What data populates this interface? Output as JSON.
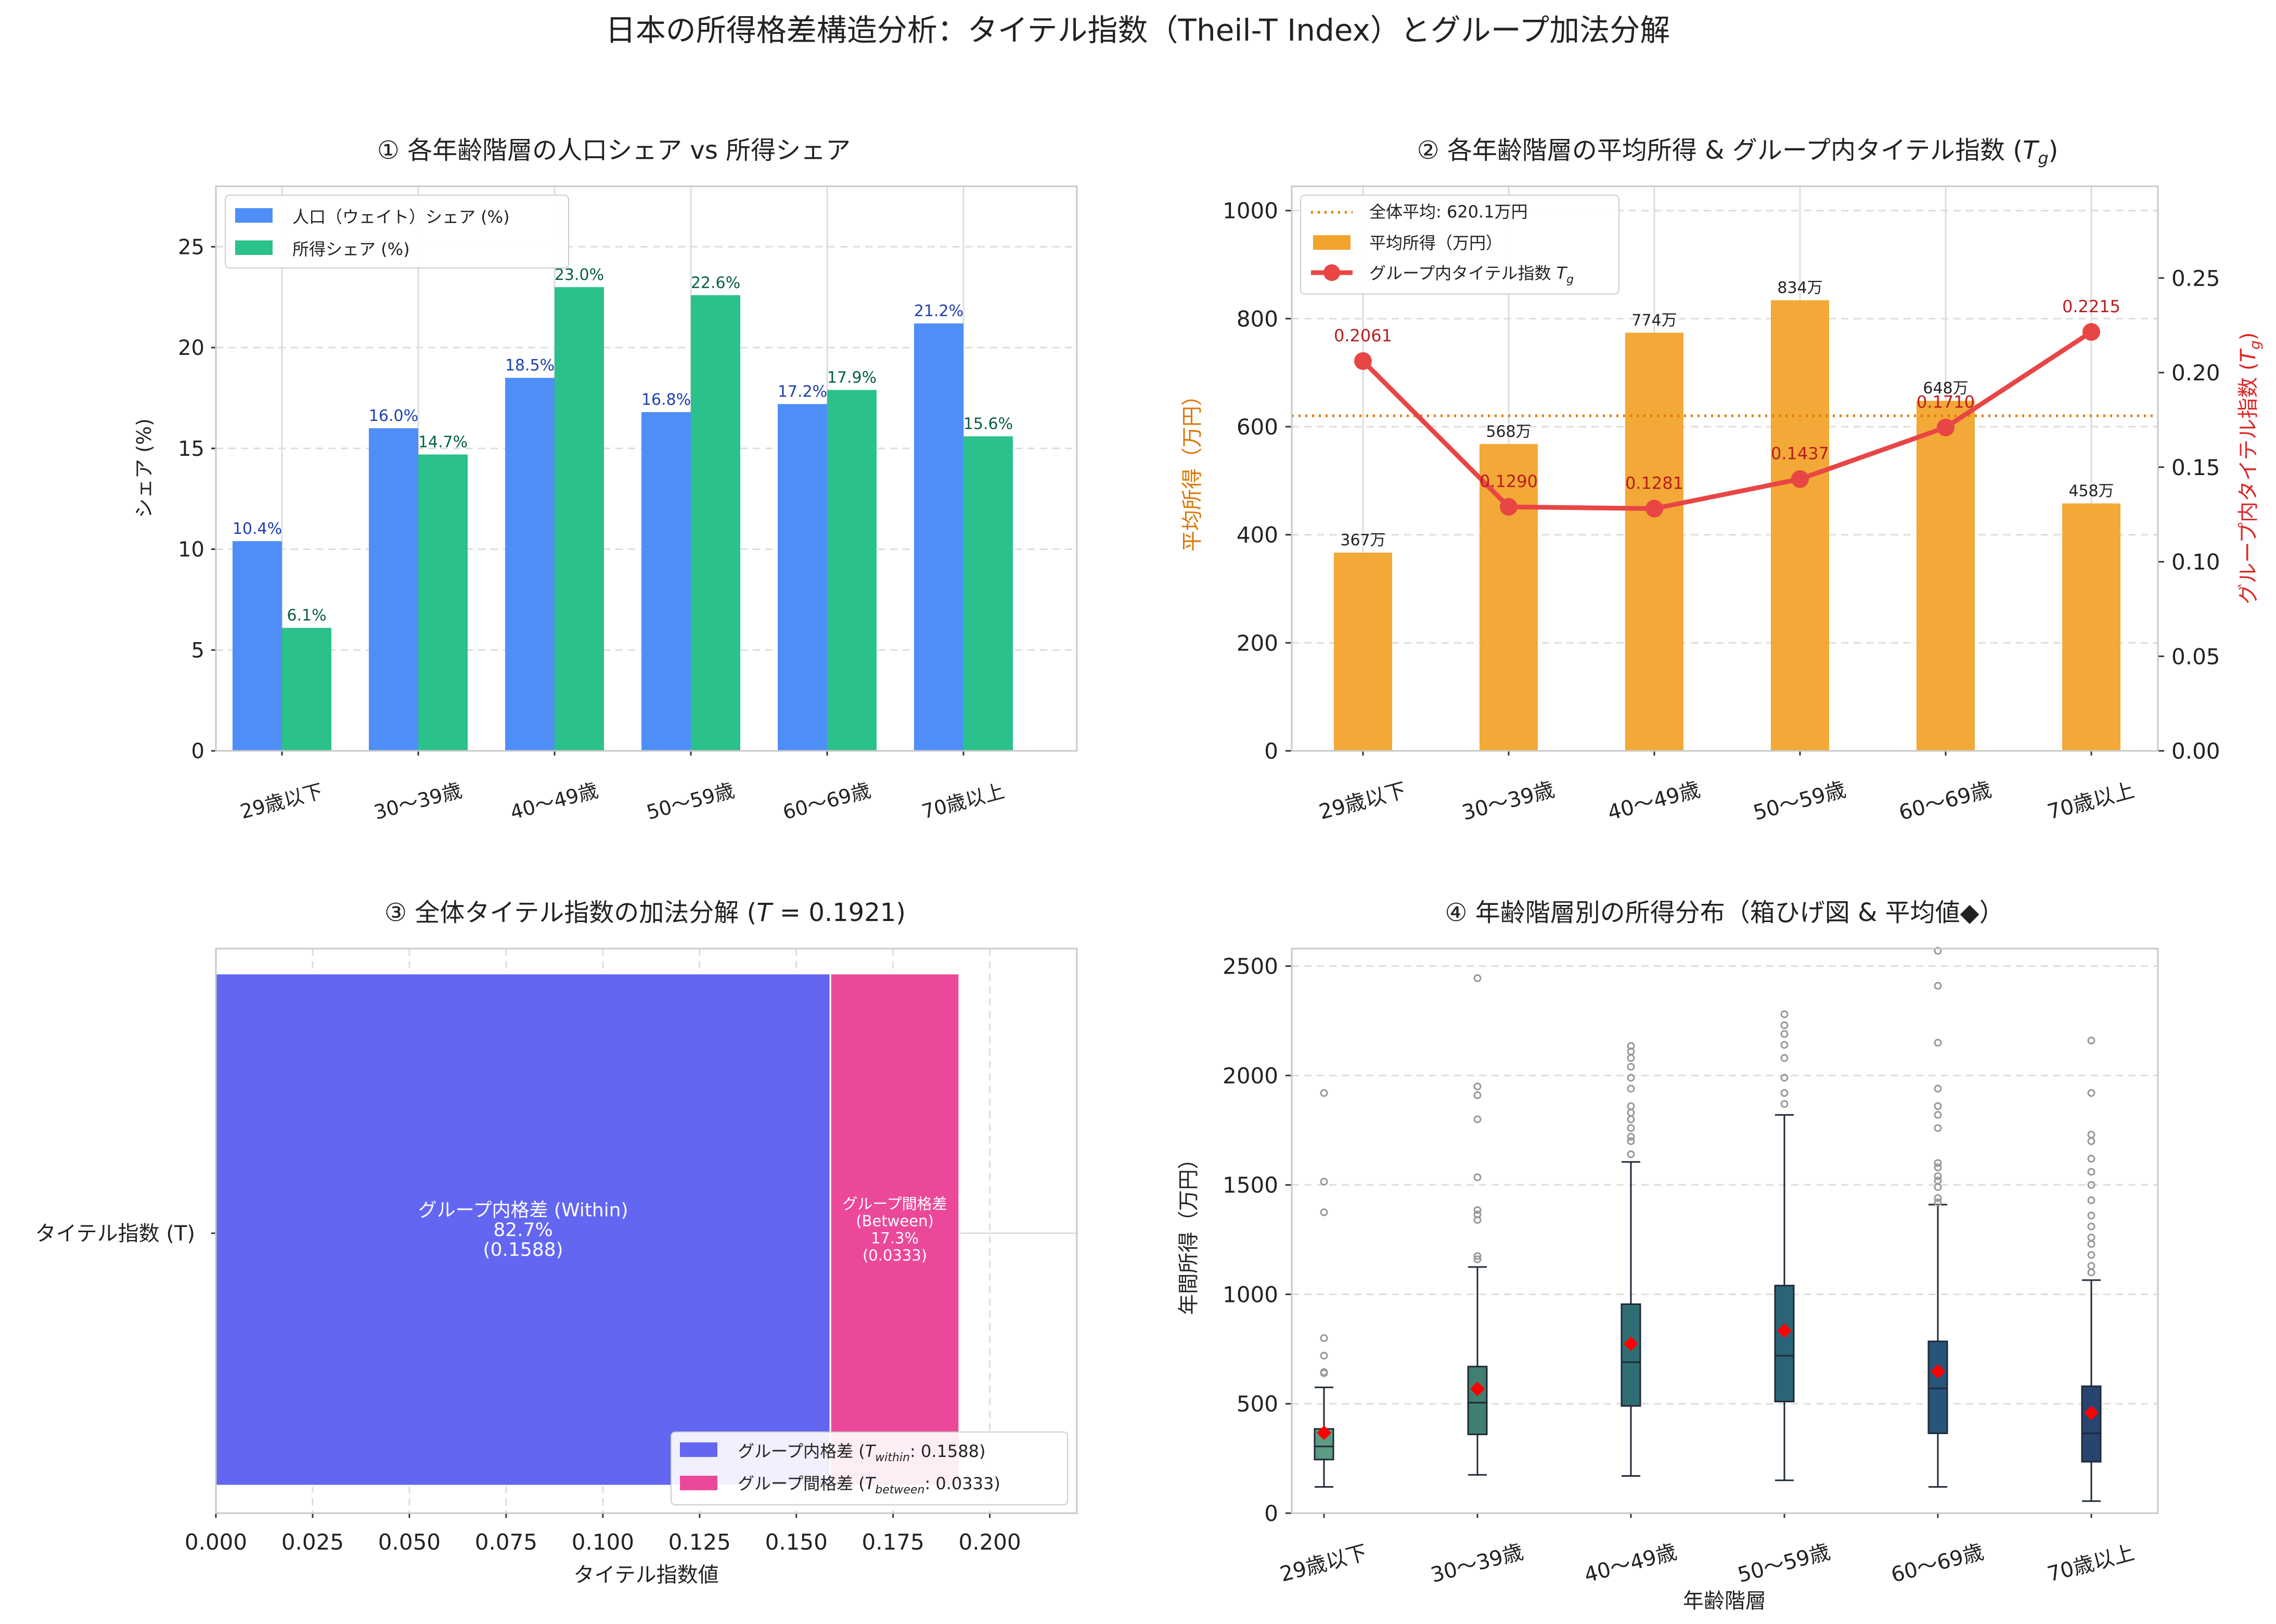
{
  "figure": {
    "title": "日本の所得格差構造分析：タイテル指数（Theil-T Index）とグループ加法分解"
  },
  "colors": {
    "population": "#4f8ef7",
    "income": "#2ac28a",
    "avg_bar": "#f2a42c",
    "theil_line": "#e84545",
    "overall_line": "#e07b00",
    "within": "#6366f1",
    "between": "#ec4899",
    "pop_label": "#1e40af",
    "inc_label": "#065f46",
    "theil_label": "#b91c1c",
    "left_axis_label": "#d97706",
    "right_axis_label": "#dc2626",
    "mean_marker": "#ff0000",
    "box_fills": [
      "#5b9c82",
      "#3f8070",
      "#2f6f73",
      "#2b6478",
      "#27557a",
      "#2a4470"
    ]
  },
  "chart_data": [
    {
      "type": "bar",
      "title": "① 各年齢階層の人口シェア vs 所得シェア",
      "categories": [
        "29歳以下",
        "30〜39歳",
        "40〜49歳",
        "50〜59歳",
        "60〜69歳",
        "70歳以上"
      ],
      "series": [
        {
          "name": "人口（ウェイト）シェア (%)",
          "values": [
            10.4,
            16.0,
            18.5,
            16.8,
            17.2,
            21.2
          ],
          "labels": [
            "10.4%",
            "16.0%",
            "18.5%",
            "16.8%",
            "17.2%",
            "21.2%"
          ]
        },
        {
          "name": "所得シェア (%)",
          "values": [
            6.1,
            14.7,
            23.0,
            22.6,
            17.9,
            15.6
          ],
          "labels": [
            "6.1%",
            "14.7%",
            "23.0%",
            "22.6%",
            "17.9%",
            "15.6%"
          ]
        }
      ],
      "ylabel": "シェア (%)",
      "ylim": [
        0,
        28
      ],
      "yticks": [
        0,
        5,
        10,
        15,
        20,
        25
      ],
      "ytick_labels": [
        "0",
        "5",
        "10",
        "15",
        "20",
        "25"
      ],
      "legend": "top-left",
      "grid": true
    },
    {
      "type": "bar",
      "title": "② 各年齢階層の平均所得 & グループ内タイテル指数 (T_g)",
      "title_main": "② 各年齢階層の平均所得 & グループ内タイテル指数 (",
      "title_var": "T",
      "title_sub": "g",
      "title_end": ")",
      "categories": [
        "29歳以下",
        "30〜39歳",
        "40〜49歳",
        "50〜59歳",
        "60〜69歳",
        "70歳以上"
      ],
      "bar_series": {
        "name": "平均所得（万円）",
        "values": [
          367,
          568,
          774,
          834,
          648,
          458
        ],
        "labels": [
          "367万",
          "568万",
          "774万",
          "834万",
          "648万",
          "458万"
        ]
      },
      "line_series": {
        "name": "グループ内タイテル指数 T_g",
        "name_main": "グループ内タイテル指数 ",
        "values": [
          0.2061,
          0.129,
          0.1281,
          0.1437,
          0.171,
          0.2215
        ],
        "labels": [
          "0.2061",
          "0.1290",
          "0.1281",
          "0.1437",
          "0.1710",
          "0.2215"
        ]
      },
      "hline": {
        "value": 620.1,
        "label": "全体平均: 620.1万円"
      },
      "ylabel_left": "平均所得（万円）",
      "ylabel_right_main": "グループ内タイテル指数 (",
      "ylabel_right_end": ")",
      "ylim_left": [
        0,
        1045
      ],
      "ylim_right": [
        0,
        0.2985
      ],
      "yticks_left": [
        0,
        200,
        400,
        600,
        800,
        1000
      ],
      "ytick_labels_left": [
        "0",
        "200",
        "400",
        "600",
        "800",
        "1000"
      ],
      "yticks_right": [
        0,
        0.05,
        0.1,
        0.15,
        0.2,
        0.25
      ],
      "ytick_labels_right": [
        "0.00",
        "0.05",
        "0.10",
        "0.15",
        "0.20",
        "0.25"
      ],
      "legend": "top-left",
      "grid": true
    },
    {
      "type": "bar",
      "orientation": "horizontal-stacked",
      "title": "③ 全体タイテル指数の加法分解 (T = 0.1921)",
      "title_main": "③ 全体タイテル指数の加法分解 (",
      "title_var": "T",
      "title_end": " = 0.1921)",
      "category": "タイテル指数 (T)",
      "segments": [
        {
          "name": "グループ内格差",
          "value": 0.1588,
          "label_lines": [
            "グループ内格差 (Within)",
            "82.7%",
            "(0.1588)"
          ],
          "legend_main": "グループ内格差 (",
          "legend_sub": "within",
          "legend_end": ": 0.1588)"
        },
        {
          "name": "グループ間格差",
          "value": 0.0333,
          "label_lines": [
            "グループ間格差",
            "(Between)",
            "17.3%",
            "(0.0333)"
          ],
          "legend_main": "グループ間格差 (",
          "legend_sub": "between",
          "legend_end": ": 0.0333)"
        }
      ],
      "xlabel": "タイテル指数値",
      "xlim": [
        0,
        0.2225
      ],
      "xticks": [
        0,
        0.025,
        0.05,
        0.075,
        0.1,
        0.125,
        0.15,
        0.175,
        0.2
      ],
      "xtick_labels": [
        "0.000",
        "0.025",
        "0.050",
        "0.075",
        "0.100",
        "0.125",
        "0.150",
        "0.175",
        "0.200"
      ],
      "legend": "bottom-right",
      "grid": true
    },
    {
      "type": "box",
      "title": "④ 年齢階層別の所得分布（箱ひげ図 & 平均値◆）",
      "categories": [
        "29歳以下",
        "30〜39歳",
        "40〜49歳",
        "50〜59歳",
        "60〜69歳",
        "70歳以上"
      ],
      "boxes": [
        {
          "whislo": 120,
          "q1": 245,
          "med": 305,
          "q3": 385,
          "whishi": 575,
          "mean": 367,
          "fliers": [
            640,
            645,
            720,
            800,
            1375,
            1515,
            1920
          ]
        },
        {
          "whislo": 175,
          "q1": 360,
          "med": 505,
          "q3": 670,
          "whishi": 1125,
          "mean": 568,
          "fliers": [
            1160,
            1175,
            1340,
            1365,
            1385,
            1535,
            1800,
            1910,
            1950,
            2445
          ]
        },
        {
          "whislo": 170,
          "q1": 490,
          "med": 690,
          "q3": 955,
          "whishi": 1605,
          "mean": 774,
          "fliers": [
            1640,
            1700,
            1720,
            1760,
            1800,
            1830,
            1860,
            1940,
            1990,
            2040,
            2080,
            2110,
            2135
          ]
        },
        {
          "whislo": 150,
          "q1": 510,
          "med": 720,
          "q3": 1040,
          "whishi": 1820,
          "mean": 834,
          "fliers": [
            1870,
            1920,
            1990,
            2080,
            2140,
            2190,
            2230,
            2280
          ]
        },
        {
          "whislo": 120,
          "q1": 365,
          "med": 570,
          "q3": 785,
          "whishi": 1410,
          "mean": 648,
          "fliers": [
            1420,
            1440,
            1490,
            1520,
            1540,
            1580,
            1600,
            1760,
            1820,
            1860,
            1940,
            2150,
            2410,
            2570
          ]
        },
        {
          "whislo": 55,
          "q1": 235,
          "med": 365,
          "q3": 580,
          "whishi": 1065,
          "mean": 458,
          "fliers": [
            1100,
            1130,
            1180,
            1230,
            1260,
            1310,
            1360,
            1430,
            1500,
            1560,
            1620,
            1700,
            1730,
            1920,
            2160
          ]
        }
      ],
      "xlabel": "年齢階層",
      "ylabel": "年間所得（万円）",
      "ylim": [
        0,
        2580
      ],
      "yticks": [
        0,
        500,
        1000,
        1500,
        2000,
        2500
      ],
      "ytick_labels": [
        "0",
        "500",
        "1000",
        "1500",
        "2000",
        "2500"
      ],
      "grid": true
    }
  ]
}
